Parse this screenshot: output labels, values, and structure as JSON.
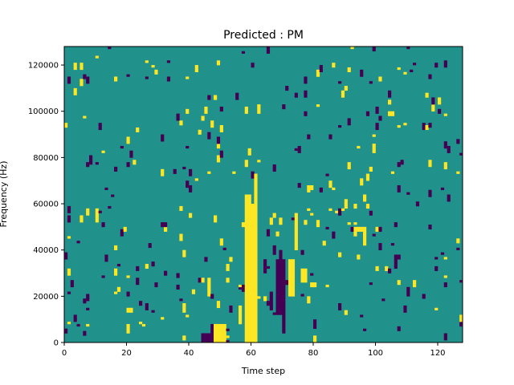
{
  "chart_data": {
    "type": "heatmap",
    "title": "Predicted : PM",
    "xlabel": "Time step",
    "ylabel": "Frequency (Hz)",
    "xlim": [
      0,
      128
    ],
    "ylim": [
      0,
      128000
    ],
    "n_time": 128,
    "n_freq": 128,
    "x_ticks": [
      0,
      20,
      40,
      60,
      80,
      100,
      120
    ],
    "y_ticks": [
      0,
      20000,
      40000,
      60000,
      80000,
      100000,
      120000
    ],
    "grid": false,
    "legend": "none",
    "colormap": "viridis",
    "values": {
      "low": 0,
      "mid": 1,
      "high": 2
    },
    "colors": {
      "low": "#440154",
      "mid": "#21918c",
      "high": "#fde725"
    },
    "background_value": 1,
    "high_segments": [
      [
        58,
        60,
        0,
        64
      ],
      [
        60,
        62,
        0,
        60
      ],
      [
        59,
        60,
        26,
        56
      ],
      [
        61,
        62,
        60,
        72
      ],
      [
        48,
        52,
        0,
        8
      ],
      [
        56,
        57,
        8,
        16
      ],
      [
        46,
        47,
        20,
        28
      ],
      [
        72,
        74,
        20,
        36
      ],
      [
        74,
        75,
        40,
        56
      ],
      [
        76,
        78,
        26,
        32
      ],
      [
        79,
        81,
        24,
        26
      ],
      [
        96,
        97,
        42,
        50
      ],
      [
        93,
        96,
        48,
        50
      ],
      [
        104,
        106,
        98,
        100
      ],
      [
        99,
        100,
        82,
        86
      ],
      [
        98,
        99,
        74,
        76
      ],
      [
        83,
        84,
        42,
        44
      ],
      [
        90,
        91,
        58,
        62
      ],
      [
        94,
        95,
        36,
        38
      ],
      [
        97,
        98,
        58,
        60
      ]
    ],
    "low_segments": [
      [
        44,
        48,
        0,
        4
      ],
      [
        47,
        48,
        4,
        8
      ],
      [
        68,
        71,
        12,
        36
      ],
      [
        69,
        70,
        36,
        40
      ],
      [
        70,
        71,
        4,
        12
      ],
      [
        66,
        67,
        14,
        22
      ],
      [
        64,
        65,
        30,
        36
      ],
      [
        106,
        107,
        32,
        38
      ],
      [
        101,
        102,
        48,
        50
      ],
      [
        106,
        107,
        50,
        52
      ],
      [
        92,
        94,
        48,
        50
      ],
      [
        80,
        81,
        6,
        10
      ],
      [
        31,
        33,
        50,
        52
      ],
      [
        110,
        111,
        20,
        24
      ],
      [
        67,
        68,
        38,
        42
      ]
    ],
    "seed": 7,
    "n_random_high": 150,
    "n_random_low": 170
  }
}
